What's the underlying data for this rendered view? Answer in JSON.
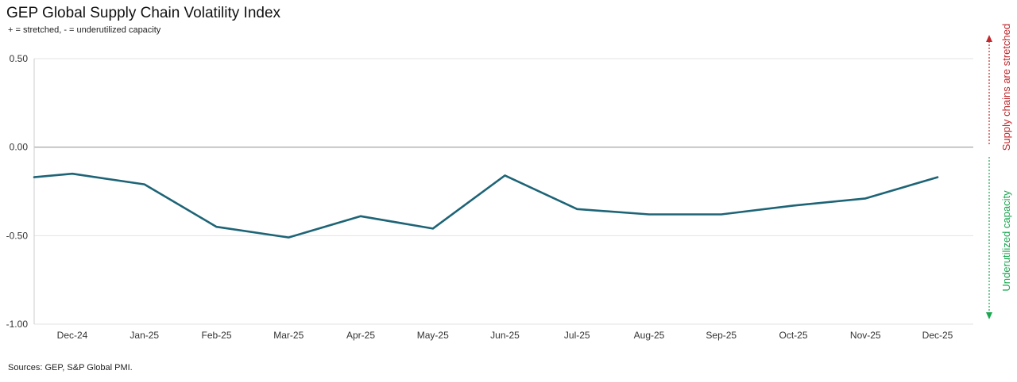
{
  "chart_data": {
    "type": "line",
    "title": "GEP Global Supply Chain Volatility Index",
    "subtitle": "+ = stretched, - = underutilized capacity",
    "source": "Sources: GEP, S&P Global PMI.",
    "categories": [
      "Dec-24",
      "Jan-25",
      "Feb-25",
      "Mar-25",
      "Apr-25",
      "May-25",
      "Jun-25",
      "Jul-25",
      "Aug-25",
      "Sep-25",
      "Oct-25",
      "Nov-25",
      "Dec-25"
    ],
    "x_tick_labels": [
      "Dec-24",
      "Jan-25",
      "Feb-25",
      "Mar-25",
      "Apr-25",
      "May-25",
      "Jun-25",
      "Jul-25",
      "Aug-25",
      "Sep-25",
      "Oct-25",
      "Nov-25",
      "Dec-25"
    ],
    "y_tick_labels": [
      "0.50",
      "0.00",
      "-0.50",
      "-1.00"
    ],
    "y_ticks": [
      0.5,
      0.0,
      -0.5,
      -1.0
    ],
    "ylim": [
      -1.0,
      0.5
    ],
    "series": [
      {
        "x": [
          "Nov-24",
          "Dec-24",
          "Jan-25",
          "Feb-25",
          "Mar-25",
          "Apr-25",
          "May-25",
          "Jun-25",
          "Jul-25",
          "Aug-25",
          "Sep-25",
          "Oct-25",
          "Nov-25",
          "Dec-25"
        ],
        "values": [
          -0.17,
          -0.15,
          -0.21,
          -0.45,
          -0.51,
          -0.39,
          -0.46,
          -0.16,
          -0.35,
          -0.38,
          -0.38,
          -0.33,
          -0.29,
          -0.17
        ],
        "color": "#1d6476"
      }
    ],
    "grid": true,
    "zero_line_color": "#999999",
    "side_annotations": {
      "up": {
        "text": "Supply chains are stretched",
        "color": "#c0282d"
      },
      "down": {
        "text": "Underutilized capacity",
        "color": "#1aa750"
      }
    }
  }
}
